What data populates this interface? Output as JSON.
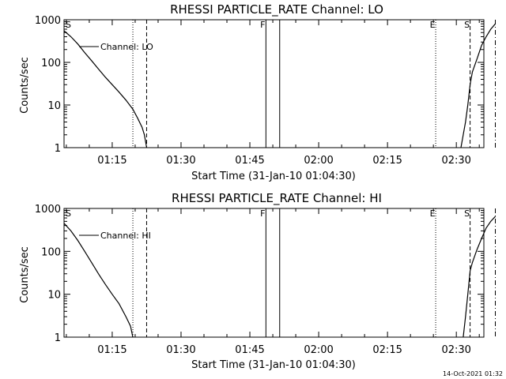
{
  "footer_timestamp": "14-Oct-2021 01:32",
  "chart_data": [
    {
      "type": "line",
      "title": "RHESSI PARTICLE_RATE Channel: LO",
      "xlabel": "Start Time (31-Jan-10 01:04:30)",
      "ylabel": "Counts/sec",
      "y_scale": "log",
      "ylim": [
        1,
        1000
      ],
      "x_ticks": [
        "01:15",
        "01:30",
        "01:45",
        "02:00",
        "02:15",
        "02:30"
      ],
      "y_ticks": [
        "1",
        "10",
        "100",
        "1000"
      ],
      "legend": "Channel: LO",
      "legend_position": "top-left",
      "markers": [
        {
          "label": "S",
          "time": "01:04:30",
          "style": "none"
        },
        {
          "label": "",
          "time": "01:19:30",
          "style": "dotted"
        },
        {
          "label": "",
          "time": "01:22:30",
          "style": "dashed"
        },
        {
          "label": "F",
          "time": "01:48:30",
          "style": "solid"
        },
        {
          "label": "",
          "time": "01:51:30",
          "style": "solid"
        },
        {
          "label": "E",
          "time": "02:25:30",
          "style": "dotted"
        },
        {
          "label": "S",
          "time": "02:33:00",
          "style": "dashed"
        },
        {
          "label": "",
          "time": "02:38:30",
          "style": "dashdot"
        }
      ],
      "series": [
        {
          "name": "Channel: LO",
          "segments": [
            [
              [
                "01:04:30",
                550
              ],
              [
                "01:06:00",
                400
              ],
              [
                "01:07:30",
                270
              ],
              [
                "01:09:00",
                170
              ],
              [
                "01:10:30",
                110
              ],
              [
                "01:12:00",
                70
              ],
              [
                "01:13:30",
                45
              ],
              [
                "01:15:00",
                30
              ],
              [
                "01:16:30",
                20
              ],
              [
                "01:18:00",
                13
              ],
              [
                "01:19:30",
                8
              ],
              [
                "01:20:30",
                5
              ],
              [
                "01:21:30",
                3
              ],
              [
                "01:22:00",
                2
              ],
              [
                "01:22:30",
                1
              ]
            ],
            [
              [
                "02:31:00",
                1
              ],
              [
                "02:31:30",
                2
              ],
              [
                "02:32:00",
                4
              ],
              [
                "02:32:30",
                10
              ],
              [
                "02:33:00",
                30
              ],
              [
                "02:33:30",
                60
              ],
              [
                "02:34:30",
                120
              ],
              [
                "02:35:30",
                250
              ],
              [
                "02:36:30",
                400
              ],
              [
                "02:37:30",
                600
              ],
              [
                "02:38:30",
                800
              ]
            ]
          ]
        }
      ]
    },
    {
      "type": "line",
      "title": "RHESSI PARTICLE_RATE Channel: HI",
      "xlabel": "Start Time (31-Jan-10 01:04:30)",
      "ylabel": "Counts/sec",
      "y_scale": "log",
      "ylim": [
        1,
        1000
      ],
      "x_ticks": [
        "01:15",
        "01:30",
        "01:45",
        "02:00",
        "02:15",
        "02:30"
      ],
      "y_ticks": [
        "1",
        "10",
        "100",
        "1000"
      ],
      "legend": "Channel: HI",
      "legend_position": "top-left",
      "markers": [
        {
          "label": "S",
          "time": "01:04:30",
          "style": "none"
        },
        {
          "label": "",
          "time": "01:19:30",
          "style": "dotted"
        },
        {
          "label": "",
          "time": "01:22:30",
          "style": "dashed"
        },
        {
          "label": "F",
          "time": "01:48:30",
          "style": "solid"
        },
        {
          "label": "",
          "time": "01:51:30",
          "style": "solid"
        },
        {
          "label": "E",
          "time": "02:25:30",
          "style": "dotted"
        },
        {
          "label": "S",
          "time": "02:33:00",
          "style": "dashed"
        },
        {
          "label": "",
          "time": "02:38:30",
          "style": "dashdot"
        }
      ],
      "series": [
        {
          "name": "Channel: HI",
          "segments": [
            [
              [
                "01:04:30",
                450
              ],
              [
                "01:06:00",
                300
              ],
              [
                "01:07:30",
                180
              ],
              [
                "01:09:00",
                100
              ],
              [
                "01:10:30",
                55
              ],
              [
                "01:12:00",
                30
              ],
              [
                "01:13:30",
                17
              ],
              [
                "01:15:00",
                10
              ],
              [
                "01:16:30",
                6
              ],
              [
                "01:18:00",
                3
              ],
              [
                "01:19:00",
                1.8
              ],
              [
                "01:19:30",
                1
              ]
            ],
            [
              [
                "02:31:30",
                1
              ],
              [
                "02:32:00",
                3
              ],
              [
                "02:32:30",
                10
              ],
              [
                "02:33:00",
                35
              ],
              [
                "02:33:30",
                55
              ],
              [
                "02:34:30",
                110
              ],
              [
                "02:35:30",
                200
              ],
              [
                "02:36:30",
                350
              ],
              [
                "02:37:30",
                500
              ],
              [
                "02:38:30",
                650
              ]
            ]
          ]
        }
      ]
    }
  ]
}
